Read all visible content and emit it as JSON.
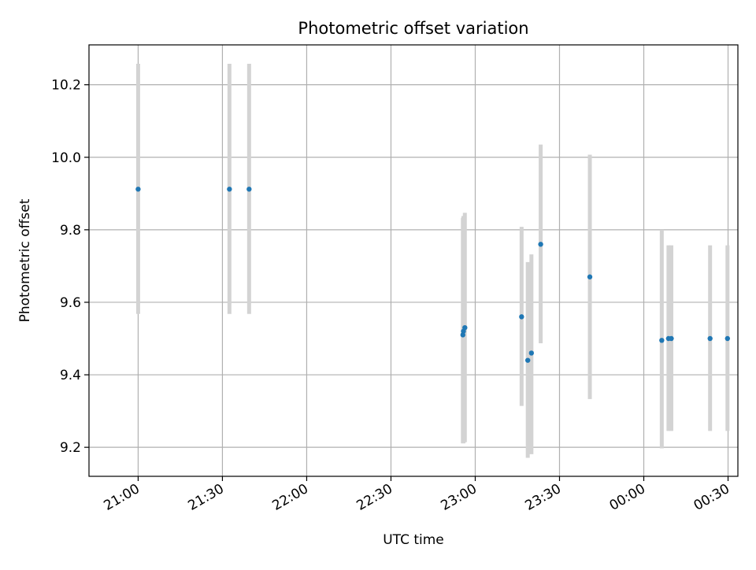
{
  "chart_data": {
    "type": "scatter",
    "title": "Photometric offset variation",
    "xlabel": "UTC time",
    "ylabel": "Photometric offset",
    "x_unit": "minutes relative to 21:00 UTC",
    "xlim": [
      -17.5,
      213.5
    ],
    "ylim": [
      9.12,
      10.31
    ],
    "x_ticks": [
      {
        "value": 0,
        "label": "21:00"
      },
      {
        "value": 30,
        "label": "21:30"
      },
      {
        "value": 60,
        "label": "22:00"
      },
      {
        "value": 90,
        "label": "22:30"
      },
      {
        "value": 120,
        "label": "23:00"
      },
      {
        "value": 150,
        "label": "23:30"
      },
      {
        "value": 180,
        "label": "00:00"
      },
      {
        "value": 210,
        "label": "00:30"
      }
    ],
    "y_ticks": [
      {
        "value": 9.2,
        "label": "9.2"
      },
      {
        "value": 9.4,
        "label": "9.4"
      },
      {
        "value": 9.6,
        "label": "9.6"
      },
      {
        "value": 9.8,
        "label": "9.8"
      },
      {
        "value": 10.0,
        "label": "10.0"
      },
      {
        "value": 10.2,
        "label": "10.2"
      }
    ],
    "grid": true,
    "legend": "none",
    "colors": {
      "points": "#1f77b4",
      "error_bars": "#d3d3d3",
      "grid": "#b0b0b0"
    },
    "points": [
      {
        "x": 0.0,
        "y": 9.912,
        "ylo": 9.568,
        "yhi": 10.258
      },
      {
        "x": 32.5,
        "y": 9.912,
        "ylo": 9.568,
        "yhi": 10.258
      },
      {
        "x": 39.5,
        "y": 9.912,
        "ylo": 9.568,
        "yhi": 10.258
      },
      {
        "x": 115.6,
        "y": 9.51,
        "ylo": 9.211,
        "yhi": 9.833
      },
      {
        "x": 115.8,
        "y": 9.52,
        "ylo": 9.211,
        "yhi": 9.838
      },
      {
        "x": 116.3,
        "y": 9.53,
        "ylo": 9.214,
        "yhi": 9.847
      },
      {
        "x": 136.5,
        "y": 9.56,
        "ylo": 9.314,
        "yhi": 9.808
      },
      {
        "x": 138.7,
        "y": 9.44,
        "ylo": 9.171,
        "yhi": 9.711
      },
      {
        "x": 140.0,
        "y": 9.46,
        "ylo": 9.181,
        "yhi": 9.732
      },
      {
        "x": 143.3,
        "y": 9.76,
        "ylo": 9.487,
        "yhi": 10.035
      },
      {
        "x": 160.8,
        "y": 9.67,
        "ylo": 9.333,
        "yhi": 10.007
      },
      {
        "x": 186.4,
        "y": 9.495,
        "ylo": 9.197,
        "yhi": 9.8
      },
      {
        "x": 188.8,
        "y": 9.5,
        "ylo": 9.245,
        "yhi": 9.757
      },
      {
        "x": 189.8,
        "y": 9.5,
        "ylo": 9.245,
        "yhi": 9.757
      },
      {
        "x": 203.6,
        "y": 9.5,
        "ylo": 9.245,
        "yhi": 9.757
      },
      {
        "x": 209.8,
        "y": 9.5,
        "ylo": 9.245,
        "yhi": 9.757
      }
    ]
  }
}
